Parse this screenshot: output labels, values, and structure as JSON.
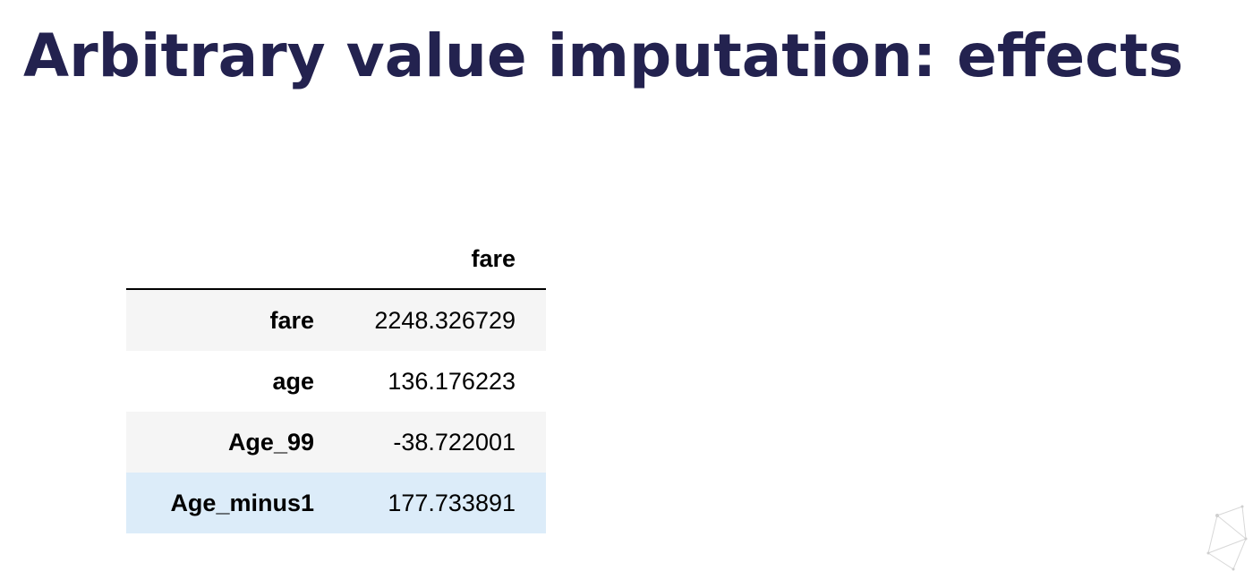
{
  "slide": {
    "title": "Arbitrary value imputation: effects"
  },
  "table": {
    "index_header": "",
    "columns": [
      "fare"
    ],
    "rows": [
      {
        "index": "fare",
        "value": "2248.326729"
      },
      {
        "index": "age",
        "value": "136.176223"
      },
      {
        "index": "Age_99",
        "value": "-38.722001"
      },
      {
        "index": "Age_minus1",
        "value": "177.733891"
      }
    ]
  },
  "colors": {
    "title": "#23224f",
    "row_stripe": "#f5f5f5",
    "row_highlight": "#dcecf9"
  }
}
